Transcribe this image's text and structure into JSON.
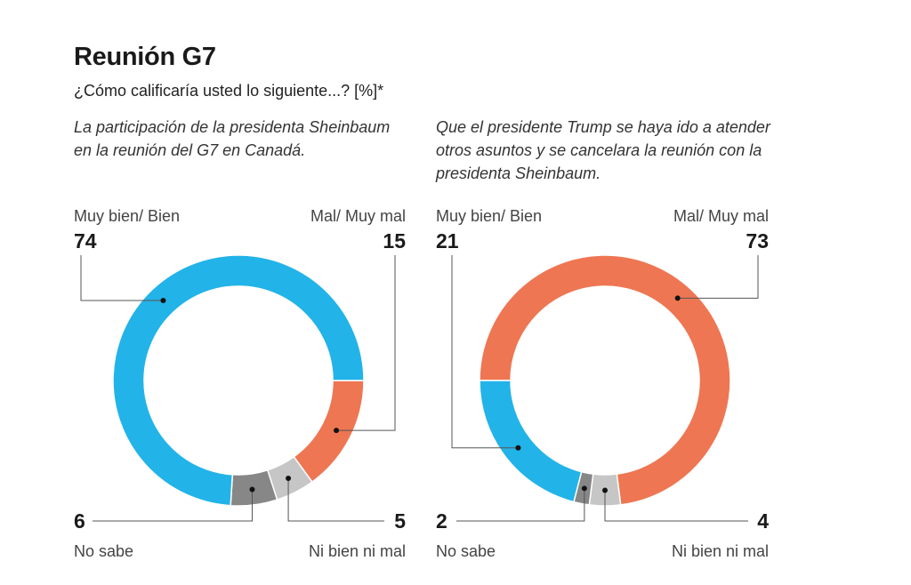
{
  "title": "Reunión G7",
  "subtitle": "¿Cómo calificaría usted lo siguiente...?  [%]*",
  "colors": {
    "muy_bien": "#22b3e8",
    "mal": "#ee7652",
    "ni_bien": "#c6c6c6",
    "no_sabe": "#878787",
    "leader": "#555555"
  },
  "chart_data": [
    {
      "type": "pie",
      "style": "donut",
      "title": "La participación de la presidenta Sheinbaum en la reunión del G7 en Canadá.",
      "slices": [
        {
          "key": "mal",
          "label": "Mal/ Muy mal",
          "value": 15
        },
        {
          "key": "ni_bien",
          "label": "Ni bien ni mal",
          "value": 5
        },
        {
          "key": "no_sabe",
          "label": "No sabe",
          "value": 6
        },
        {
          "key": "muy_bien",
          "label": "Muy bien/ Bien",
          "value": 74
        }
      ],
      "unit": "%"
    },
    {
      "type": "pie",
      "style": "donut",
      "title": "Que el presidente Trump se haya ido a atender otros asuntos y se cancelara la reunión con la presidenta Sheinbaum.",
      "slices": [
        {
          "key": "mal",
          "label": "Mal/ Muy mal",
          "value": 73
        },
        {
          "key": "ni_bien",
          "label": "Ni bien ni mal",
          "value": 4
        },
        {
          "key": "no_sabe",
          "label": "No sabe",
          "value": 2
        },
        {
          "key": "muy_bien",
          "label": "Muy bien/ Bien",
          "value": 21
        }
      ],
      "unit": "%"
    }
  ],
  "labels": {
    "left": {
      "muy_bien_label": "Muy bien/ Bien",
      "muy_bien_value": "74",
      "mal_label": "Mal/ Muy mal",
      "mal_value": "15",
      "no_sabe_label": "No sabe",
      "no_sabe_value": "6",
      "ni_bien_label": "Ni bien ni mal",
      "ni_bien_value": "5"
    },
    "right": {
      "muy_bien_label": "Muy bien/ Bien",
      "muy_bien_value": "21",
      "mal_label": "Mal/ Muy mal",
      "mal_value": "73",
      "no_sabe_label": "No sabe",
      "no_sabe_value": "2",
      "ni_bien_label": "Ni bien ni mal",
      "ni_bien_value": "4"
    }
  }
}
